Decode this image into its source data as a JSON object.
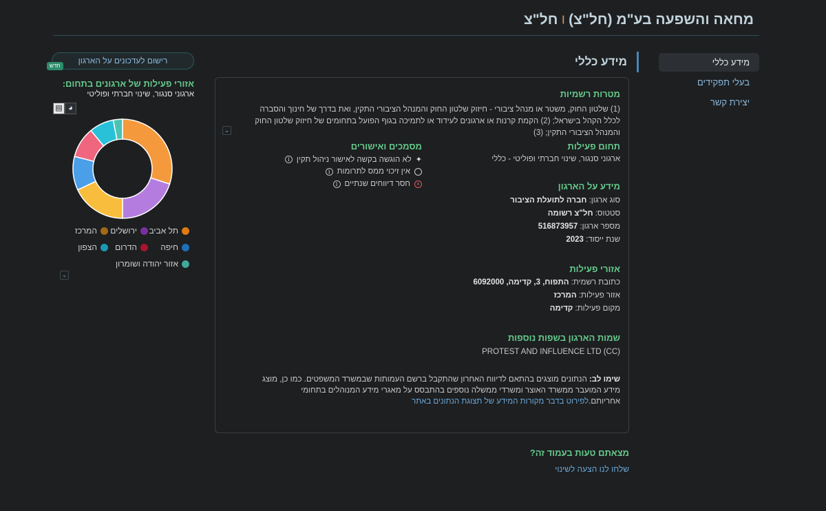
{
  "header": {
    "title_main": "מחאה והשפעה בע\"מ (חל\"צ)",
    "title_sep": "|",
    "title_short": "חל\"צ"
  },
  "side_nav": {
    "items": [
      {
        "label": "מידע כללי",
        "active": true
      },
      {
        "label": "בעלי תפקידים",
        "active": false
      },
      {
        "label": "יצירת קשר",
        "active": false
      }
    ]
  },
  "section": {
    "heading": "מידע כללי"
  },
  "card": {
    "purposes_title": "מטרות רשמיות",
    "purposes_text": "(1) שלטון החוק, משטר או מנהל ציבורי - חיזוק שלטון החוק והמנהל הציבורי התקין, ואת בדרך של חינוך והסברה לכלל הקהל בישראל; (2) הקמת קרנות או ארגונים לעידוד או לתמיכה בגוף הפועל בתחומים של חיזוק שלטון החוק והמנהל הציבורי התקין; (3)",
    "activity_title": "תחום פעילות",
    "activity_text": "ארגוני סנגור, שינוי חברתי ופוליטי - כללי",
    "docs_title": "מסמכים ואישורים",
    "docs": [
      {
        "text": "לא הוגשה בקשה לאישור ניהול תקין",
        "icon": "sparkle-icon"
      },
      {
        "text": "אין זיכוי ממס לתרומות",
        "icon": "ring-icon"
      },
      {
        "text": "חסר דיווחים שנתיים",
        "icon": "x-circle-icon"
      }
    ],
    "org_info_title": "מידע על הארגון",
    "org_info": [
      {
        "label": "סוג ארגון:",
        "value": "חברה לתועלת הציבור"
      },
      {
        "label": "סטטוס:",
        "value": "חל\"צ רשומה"
      },
      {
        "label": "מספר ארגון:",
        "value": "516873957"
      },
      {
        "label": "שנת ייסוד:",
        "value": "2023"
      }
    ],
    "areas_title": "אזורי פעילות",
    "areas": [
      {
        "label": "כתובת רשמית:",
        "value": "התפוח, 3, קדימה, 6092000"
      },
      {
        "label": "אזור פעילות:",
        "value": "המרכז"
      },
      {
        "label": "מקום פעילות:",
        "value": "קדימה"
      }
    ],
    "other_names_title": "שמות הארגון בשפות נוספות",
    "other_names_text": "PROTEST AND INFLUENCE LTD (CC)",
    "note_label": "שימו לב:",
    "note_text": " הנתונים מוצגים בהתאם לדיווח האחרון שהתקבל ברשם העמותות שבמשרד המשפטים. כמו כן, מוצג מידע המועבר ממשרד האוצר ומשרדי ממשלה נוספים בהתבסס על מאגרי מידע המנוהלים בתחומי אחריותם.",
    "note_link": "לפירוט בדבר מקורות המידע של תצוגת הנתונים באתר"
  },
  "found_error": {
    "title": "מצאתם טעות בעמוד זה?",
    "link": "שלחו לנו הצעה לשינוי"
  },
  "left": {
    "subscribe_label": "רישום לעדכונים על הארגון",
    "badge_new": "חדש",
    "areas_title": "אזורי פעילות של ארגונים בתחום:",
    "areas_sub": "ארגוני סנגור, שינוי חברתי ופוליטי"
  },
  "chart_data": {
    "type": "pie",
    "donut": true,
    "categories": [
      "תל אביב",
      "ירושלים",
      "המרכז",
      "חיפה",
      "הדרום",
      "הצפון",
      "אזור יהודה ושומרון"
    ],
    "values": [
      30,
      20,
      18,
      11,
      10,
      8,
      3
    ],
    "colors": [
      "#f59a3c",
      "#b57ce0",
      "#f9bd3d",
      "#4a9fe8",
      "#f0667f",
      "#29c1d8",
      "#4bc2b3"
    ],
    "legend_dot_colors": [
      "#e07a14",
      "#7a2fa0",
      "#a06a14",
      "#1f6fb8",
      "#a8142e",
      "#1a99b3",
      "#3fa99b"
    ]
  }
}
